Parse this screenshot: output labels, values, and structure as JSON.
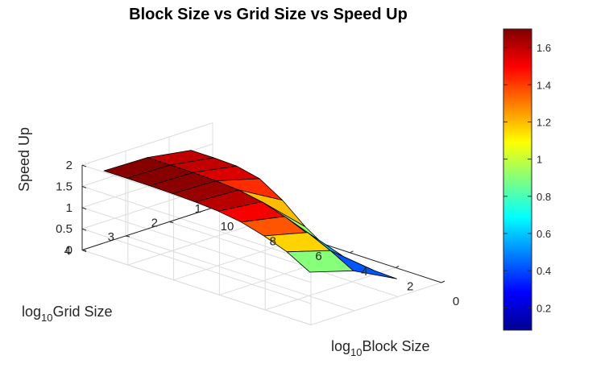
{
  "chart_data": {
    "type": "surface",
    "title": "Block Size vs Grid Size vs Speed Up",
    "xlabel": {
      "prefix": "log",
      "sub": "10",
      "text": "Block Size"
    },
    "ylabel": {
      "prefix": "log",
      "sub": "10",
      "text": "Grid Size"
    },
    "zlabel": "Speed Up",
    "xlim": [
      0,
      10
    ],
    "ylim": [
      1,
      4
    ],
    "zlim": [
      0,
      2
    ],
    "xticks": [
      "0",
      "2",
      "4",
      "6",
      "8",
      "10"
    ],
    "yticks": [
      "1",
      "2",
      "3",
      "4"
    ],
    "zticks": [
      "0",
      "0.5",
      "1",
      "1.5",
      "2"
    ],
    "colorbar_ticks": [
      "0.2",
      "0.4",
      "0.6",
      "0.8",
      "1",
      "1.2",
      "1.4",
      "1.6"
    ],
    "clim": [
      0.08,
      1.7
    ],
    "colormap": "jet",
    "grid": true,
    "block_sizes": [
      1,
      2,
      3,
      4,
      5,
      6,
      7,
      8,
      9,
      10
    ],
    "grid_sizes": [
      1.5,
      2.5,
      3.5
    ],
    "speedup": [
      [
        0.08,
        0.1,
        0.13,
        0.25,
        0.6,
        1.05,
        1.38,
        1.5,
        1.52,
        1.52
      ],
      [
        0.6,
        0.9,
        1.15,
        1.35,
        1.52,
        1.62,
        1.66,
        1.68,
        1.68,
        1.68
      ],
      [
        0.9,
        1.2,
        1.4,
        1.55,
        1.63,
        1.67,
        1.69,
        1.7,
        1.7,
        1.7
      ]
    ]
  }
}
